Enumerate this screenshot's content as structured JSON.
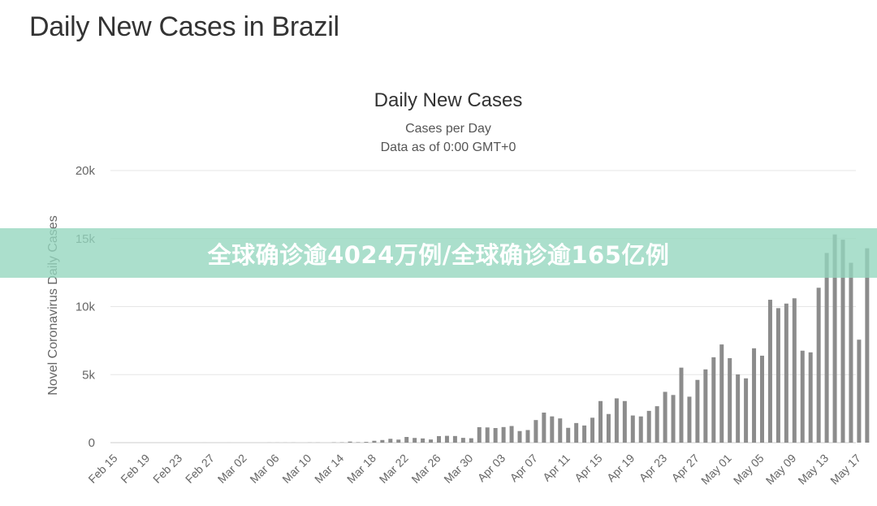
{
  "page": {
    "heading": "Daily New Cases in Brazil"
  },
  "banner": {
    "text": "全球确诊逾4024万例/全球确诊逾165亿例"
  },
  "chart_data": {
    "type": "bar",
    "title": "Daily New Cases",
    "subtitle": "Cases per Day",
    "subtitle2": "Data as of 0:00 GMT+0",
    "ylabel": "Novel Coronavirus Daily Cases",
    "xlabel": "",
    "ylim": [
      0,
      20000
    ],
    "y_ticks": [
      0,
      5000,
      10000,
      15000,
      20000
    ],
    "y_tick_labels": [
      "0",
      "5k",
      "10k",
      "15k",
      "20k"
    ],
    "grid": true,
    "bar_color": "#8c8c8c",
    "x_tick_labels": [
      "Feb 15",
      "Feb 19",
      "Feb 23",
      "Feb 27",
      "Mar 02",
      "Mar 06",
      "Mar 10",
      "Mar 14",
      "Mar 18",
      "Mar 22",
      "Mar 26",
      "Mar 30",
      "Apr 03",
      "Apr 07",
      "Apr 11",
      "Apr 15",
      "Apr 19",
      "Apr 23",
      "Apr 27",
      "May 01",
      "May 05",
      "May 09",
      "May 13",
      "May 17"
    ],
    "categories": [
      "Feb 15",
      "Feb 16",
      "Feb 17",
      "Feb 18",
      "Feb 19",
      "Feb 20",
      "Feb 21",
      "Feb 22",
      "Feb 23",
      "Feb 24",
      "Feb 25",
      "Feb 26",
      "Feb 27",
      "Feb 28",
      "Feb 29",
      "Mar 01",
      "Mar 02",
      "Mar 03",
      "Mar 04",
      "Mar 05",
      "Mar 06",
      "Mar 07",
      "Mar 08",
      "Mar 09",
      "Mar 10",
      "Mar 11",
      "Mar 12",
      "Mar 13",
      "Mar 14",
      "Mar 15",
      "Mar 16",
      "Mar 17",
      "Mar 18",
      "Mar 19",
      "Mar 20",
      "Mar 21",
      "Mar 22",
      "Mar 23",
      "Mar 24",
      "Mar 25",
      "Mar 26",
      "Mar 27",
      "Mar 28",
      "Mar 29",
      "Mar 30",
      "Mar 31",
      "Apr 01",
      "Apr 02",
      "Apr 03",
      "Apr 04",
      "Apr 05",
      "Apr 06",
      "Apr 07",
      "Apr 08",
      "Apr 09",
      "Apr 10",
      "Apr 11",
      "Apr 12",
      "Apr 13",
      "Apr 14",
      "Apr 15",
      "Apr 16",
      "Apr 17",
      "Apr 18",
      "Apr 19",
      "Apr 20",
      "Apr 21",
      "Apr 22",
      "Apr 23",
      "Apr 24",
      "Apr 25",
      "Apr 26",
      "Apr 27",
      "Apr 28",
      "Apr 29",
      "Apr 30",
      "May 01",
      "May 02",
      "May 03",
      "May 04",
      "May 05",
      "May 06",
      "May 07",
      "May 08",
      "May 09",
      "May 10",
      "May 11",
      "May 12",
      "May 13",
      "May 14",
      "May 15",
      "May 16",
      "May 17",
      "May 18"
    ],
    "values": [
      0,
      0,
      0,
      0,
      0,
      0,
      0,
      0,
      0,
      0,
      0,
      1,
      0,
      0,
      1,
      0,
      0,
      0,
      0,
      5,
      5,
      5,
      6,
      0,
      9,
      9,
      0,
      21,
      23,
      79,
      34,
      57,
      137,
      193,
      283,
      224,
      418,
      345,
      310,
      232,
      482,
      502,
      487,
      352,
      323,
      1138,
      1119,
      1074,
      1146,
      1222,
      852,
      926,
      1661,
      2210,
      1930,
      1781,
      1089,
      1442,
      1261,
      1832,
      3058,
      2105,
      3257,
      3058,
      1996,
      1927,
      2336,
      2678,
      3735,
      3503,
      5514,
      3379,
      4613,
      5385,
      6276,
      7218,
      6209,
      5015,
      4726,
      6935,
      6393,
      10503,
      9888,
      10222,
      10611,
      6760,
      6638,
      11385,
      13944,
      15305,
      14919,
      13220,
      7569,
      14288
    ]
  }
}
